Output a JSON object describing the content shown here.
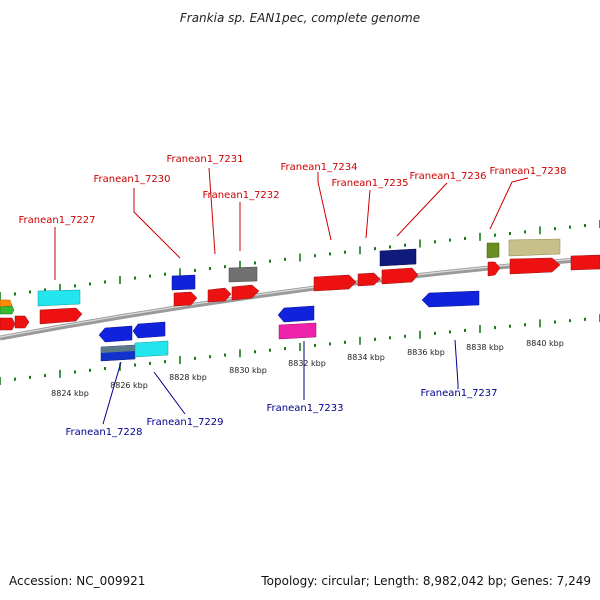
{
  "title": "Frankia sp. EAN1pec, complete genome",
  "footer": {
    "accession": "Accession: NC_009921",
    "summary": "Topology: circular; Length: 8,982,042 bp; Genes: 7,249"
  },
  "colors": {
    "forward_gene": "#ee1111",
    "reverse_gene": "#1122dd",
    "label_forward": "#cc0000",
    "label_reverse": "#00008b",
    "tick": "#1a7a1a",
    "backbone": "#8a8a8a"
  },
  "kbp_ticks": [
    {
      "text": "8824 kbp"
    },
    {
      "text": "8826 kbp"
    },
    {
      "text": "8828 kbp"
    },
    {
      "text": "8830 kbp"
    },
    {
      "text": "8832 kbp"
    },
    {
      "text": "8834 kbp"
    },
    {
      "text": "8836 kbp"
    },
    {
      "text": "8838 kbp"
    },
    {
      "text": "8840 kbp"
    }
  ],
  "gene_labels": {
    "top": [
      {
        "id": "g7227",
        "text": "Franean1_7227"
      },
      {
        "id": "g7230",
        "text": "Franean1_7230"
      },
      {
        "id": "g7231",
        "text": "Franean1_7231"
      },
      {
        "id": "g7232",
        "text": "Franean1_7232"
      },
      {
        "id": "g7234",
        "text": "Franean1_7234"
      },
      {
        "id": "g7235",
        "text": "Franean1_7235"
      },
      {
        "id": "g7236",
        "text": "Franean1_7236"
      },
      {
        "id": "g7238",
        "text": "Franean1_7238"
      }
    ],
    "bottom": [
      {
        "id": "g7228",
        "text": "Franean1_7228"
      },
      {
        "id": "g7229",
        "text": "Franean1_7229"
      },
      {
        "id": "g7233",
        "text": "Franean1_7233"
      },
      {
        "id": "g7237",
        "text": "Franean1_7237"
      }
    ]
  }
}
